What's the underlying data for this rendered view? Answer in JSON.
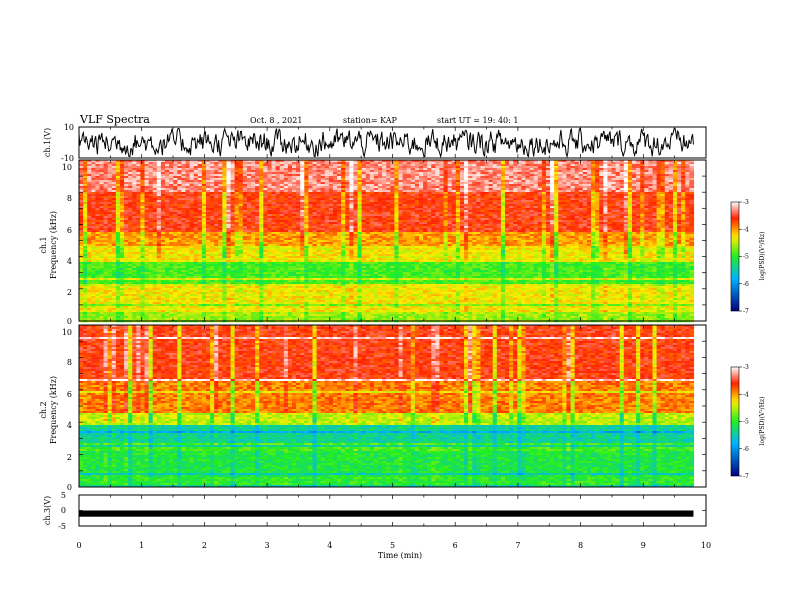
{
  "header": {
    "title": "VLF Spectra",
    "date": "Oct. 8 , 2021",
    "station": "station= KAP",
    "start": "start UT = 19: 40: 1"
  },
  "colors": {
    "low": "#00007f",
    "mid_low": "#00b4ff",
    "mid": "#22ee22",
    "mid_high": "#ffee00",
    "high": "#ff2200",
    "max": "#ffffff",
    "trace": "#000000"
  },
  "chart_data": [
    {
      "type": "line",
      "ylabel": "ch.1(V)",
      "ylim": [
        -10,
        10
      ],
      "y_ticks": [
        "10",
        "-10"
      ],
      "xlim": [
        0,
        10
      ],
      "description_ref": "noisy voltage trace, ch.1",
      "amplitude_typical": 6
    },
    {
      "type": "heatmap",
      "ylabel": "ch.1\nFrequency (kHz)",
      "ylabel_top": "ch.1",
      "ylabel_bottom": "Frequency (kHz)",
      "xlim": [
        0,
        9.8
      ],
      "ylim": [
        0,
        10
      ],
      "y_ticks": [
        "0",
        "2",
        "4",
        "6",
        "8",
        "10"
      ],
      "bands": [
        {
          "from": 0,
          "to": 0.6,
          "level": -4.6
        },
        {
          "from": 0.6,
          "to": 2.2,
          "level": -4.3
        },
        {
          "from": 2.2,
          "to": 3.7,
          "level": -4.9
        },
        {
          "from": 3.7,
          "to": 4.7,
          "level": -4.3
        },
        {
          "from": 4.7,
          "to": 5.5,
          "level": -4.0
        },
        {
          "from": 5.5,
          "to": 8.0,
          "level": -3.6
        },
        {
          "from": 8.0,
          "to": 10,
          "level": -3.3
        }
      ],
      "colorbar": {
        "label": "log(PSD)(V²/Hz)",
        "range": [
          -7,
          -3
        ],
        "ticks": [
          "-3",
          "-4",
          "-5",
          "-6",
          "-7"
        ]
      }
    },
    {
      "type": "heatmap",
      "ylabel": "ch.2\nFrequency (kHz)",
      "ylabel_top": "ch.2",
      "ylabel_bottom": "Frequency (kHz)",
      "xlim": [
        0,
        9.8
      ],
      "ylim": [
        0,
        10
      ],
      "y_ticks": [
        "0",
        "2",
        "4",
        "6",
        "8",
        "10"
      ],
      "bands": [
        {
          "from": 0,
          "to": 0.6,
          "level": -5.0
        },
        {
          "from": 0.6,
          "to": 2.2,
          "level": -5.1
        },
        {
          "from": 2.2,
          "to": 3.8,
          "level": -5.4
        },
        {
          "from": 3.8,
          "to": 4.6,
          "level": -4.5
        },
        {
          "from": 4.6,
          "to": 6.5,
          "level": -3.9
        },
        {
          "from": 6.5,
          "to": 10,
          "level": -3.6
        }
      ],
      "colorbar": {
        "label": "log(PSD)(V²/Hz)",
        "range": [
          -7,
          -3
        ],
        "ticks": [
          "-3",
          "-4",
          "-5",
          "-6",
          "-7"
        ]
      }
    },
    {
      "type": "line",
      "ylabel": "ch.3(V)",
      "ylim": [
        -5,
        5
      ],
      "y_ticks": [
        "5",
        "0",
        "-5"
      ],
      "xlim": [
        0,
        10
      ],
      "level": -1,
      "thickness_v": 1
    }
  ],
  "x_axis": {
    "label": "Time (min)",
    "range": [
      0,
      10
    ],
    "ticks": [
      "0",
      "1",
      "2",
      "3",
      "4",
      "5",
      "6",
      "7",
      "8",
      "9",
      "10"
    ]
  }
}
